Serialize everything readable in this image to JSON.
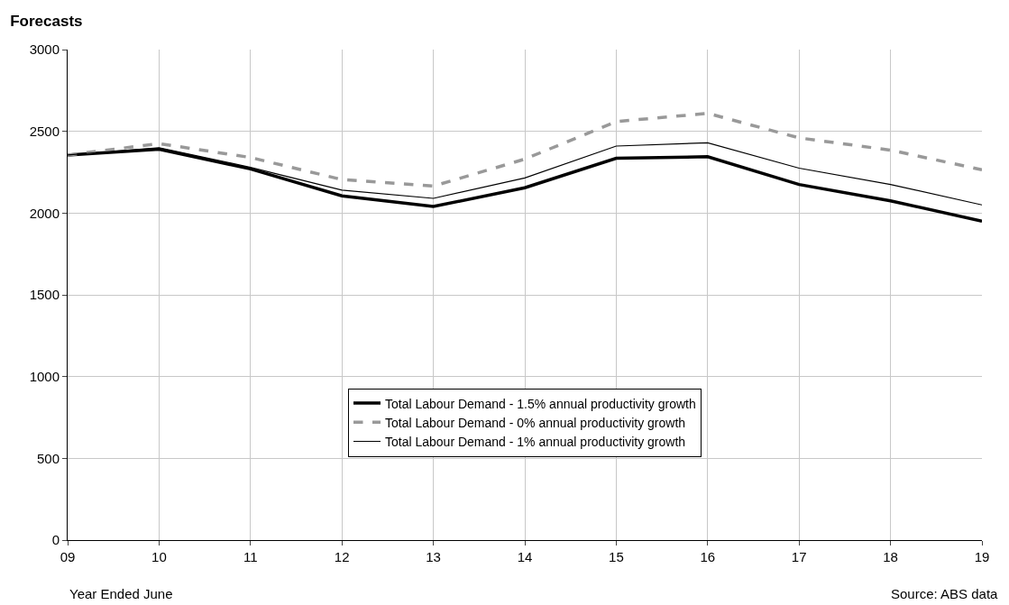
{
  "chart_data": {
    "type": "line",
    "title": "Forecasts",
    "xlabel": "Year Ended June",
    "categories": [
      "09",
      "10",
      "11",
      "12",
      "13",
      "14",
      "15",
      "16",
      "17",
      "18",
      "19"
    ],
    "series": [
      {
        "name": "Total Labour Demand - 1.5% annual productivity growth",
        "color": "#000000",
        "line_style": "solid",
        "values": [
          2355,
          2390,
          2270,
          2105,
          2040,
          2155,
          2335,
          2345,
          2175,
          2075,
          1950
        ]
      },
      {
        "name": "Total Labour Demand - 0% annual productivity growth",
        "color": "#999999",
        "line_style": "dashed",
        "values": [
          2355,
          2425,
          2340,
          2205,
          2165,
          2330,
          2560,
          2610,
          2460,
          2385,
          2265
        ]
      },
      {
        "name": "Total Labour Demand - 1% annual productivity growth",
        "color": "#000000",
        "line_style": "solid",
        "values": [
          2355,
          2400,
          2280,
          2140,
          2090,
          2215,
          2410,
          2430,
          2275,
          2175,
          2050
        ]
      }
    ],
    "ylim": [
      0,
      3000
    ],
    "yticks": [
      0,
      500,
      1000,
      1500,
      2000,
      2500,
      3000
    ],
    "grid": true,
    "legend": "bottom",
    "marker": "none",
    "annotations": [
      "Source: ABS data"
    ]
  }
}
